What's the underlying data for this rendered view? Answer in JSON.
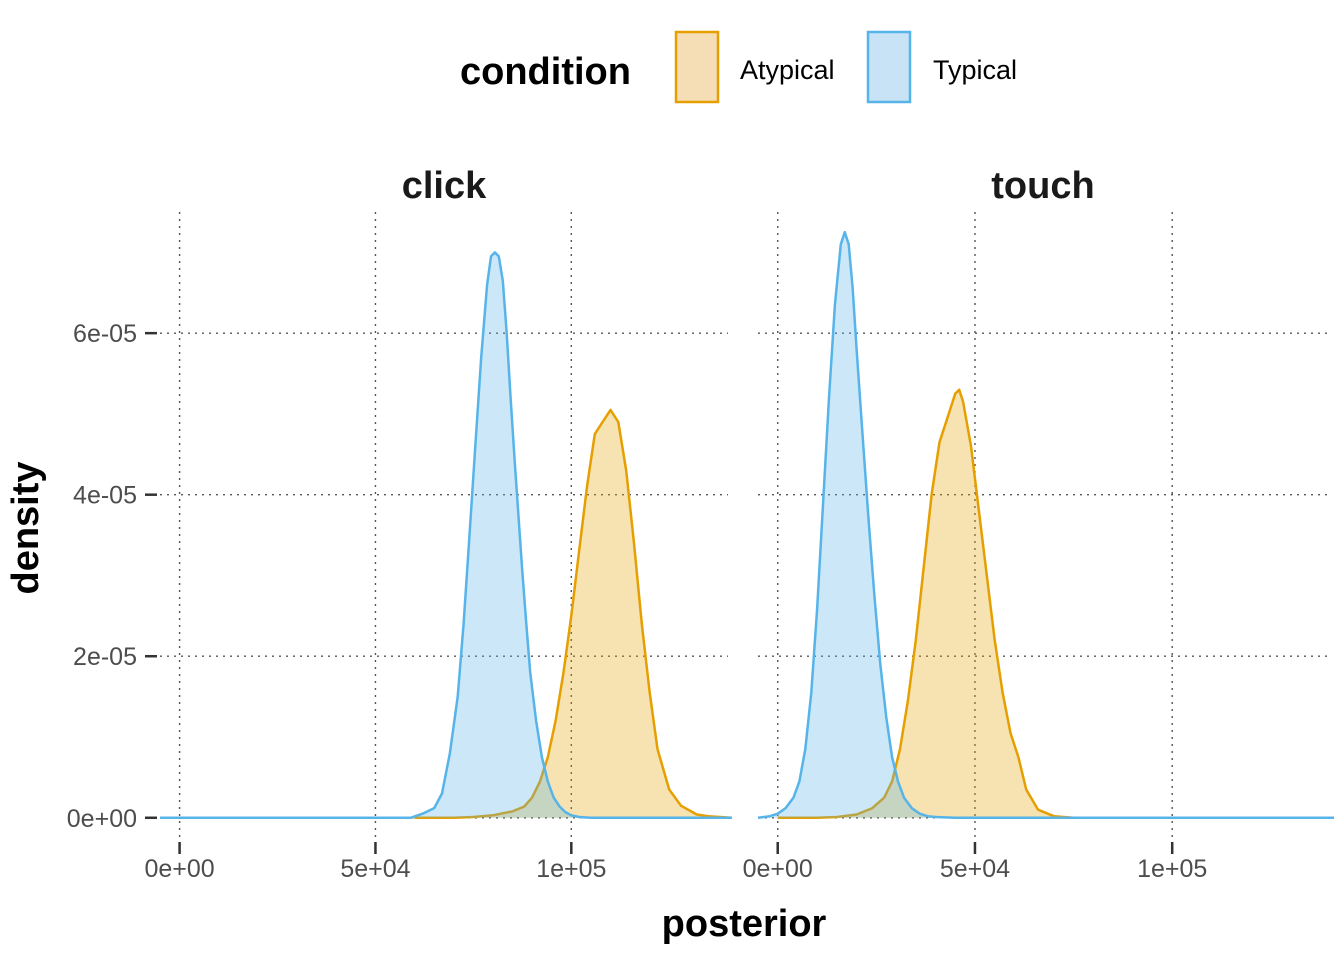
{
  "chart_data": {
    "type": "area",
    "legend": {
      "title": "condition",
      "position": "top",
      "entries": [
        {
          "name": "Atypical",
          "fill": "#f5deb5",
          "stroke": "#e69f00"
        },
        {
          "name": "Typical",
          "fill": "#c8e3f5",
          "stroke": "#56b4e9"
        }
      ]
    },
    "xlabel": "posterior",
    "ylabel": "density",
    "xlim": [
      -5000,
      140000
    ],
    "ylim": [
      -3e-06,
      7.5e-05
    ],
    "x_ticks": [
      0,
      50000,
      100000
    ],
    "x_tick_labels": [
      "0e+00",
      "5e+04",
      "1e+05"
    ],
    "y_ticks": [
      0,
      2e-05,
      4e-05,
      6e-05
    ],
    "y_tick_labels": [
      "0e+00",
      "2e-05",
      "4e-05",
      "6e-05"
    ],
    "grid": "dotted",
    "panels": [
      {
        "name": "click",
        "series": [
          {
            "name": "Atypical",
            "x": [
              60000,
              65000,
              70000,
              75000,
              80000,
              85000,
              88000,
              90000,
              92000,
              94000,
              96000,
              98000,
              100000,
              102000,
              104000,
              106000,
              108000,
              110000,
              112000,
              114000,
              116000,
              118000,
              120000,
              122000,
              125000,
              128000,
              132000,
              135000,
              141000
            ],
            "y": [
              0,
              0,
              0,
              1e-07,
              3e-07,
              8e-07,
              1.4e-06,
              2.5e-06,
              4.5e-06,
              7.5e-06,
              1.2e-05,
              1.8e-05,
              2.5e-05,
              3.3e-05,
              4.1e-05,
              4.75e-05,
              4.9e-05,
              5.05e-05,
              4.9e-05,
              4.3e-05,
              3.4e-05,
              2.4e-05,
              1.55e-05,
              8.5e-06,
              3.5e-06,
              1.5e-06,
              4e-07,
              2e-07,
              0
            ]
          },
          {
            "name": "Typical",
            "x": [
              -5000,
              50000,
              59000,
              62000,
              65000,
              67000,
              69000,
              71000,
              72500,
              74000,
              75500,
              77000,
              78500,
              79500,
              80500,
              81500,
              82500,
              83500,
              84500,
              85500,
              86500,
              87500,
              88500,
              89500,
              91000,
              92500,
              94000,
              95500,
              97000,
              98500,
              100000,
              102000,
              105000,
              110000,
              141000
            ],
            "y": [
              0,
              0,
              0,
              5e-07,
              1.2e-06,
              3e-06,
              8e-06,
              1.5e-05,
              2.4e-05,
              3.5e-05,
              4.6e-05,
              5.7e-05,
              6.6e-05,
              6.95e-05,
              7e-05,
              6.95e-05,
              6.65e-05,
              6e-05,
              5.2e-05,
              4.45e-05,
              3.75e-05,
              3.05e-05,
              2.4e-05,
              1.8e-05,
              1.2e-05,
              7.5e-06,
              4.5e-06,
              2.5e-06,
              1.4e-06,
              7e-07,
              3e-07,
              1e-07,
              0,
              0,
              0
            ]
          }
        ]
      },
      {
        "name": "touch",
        "series": [
          {
            "name": "Atypical",
            "x": [
              0,
              10000,
              15000,
              20000,
              24000,
              27000,
              29000,
              31000,
              33000,
              35000,
              37000,
              39000,
              41000,
              43000,
              45000,
              46000,
              47000,
              49000,
              51000,
              53000,
              55000,
              57000,
              59000,
              61000,
              63000,
              66000,
              70000,
              75000,
              80000,
              141000
            ],
            "y": [
              0,
              0,
              1e-07,
              4e-07,
              1.2e-06,
              2.5e-06,
              4.5e-06,
              8.5e-06,
              1.45e-05,
              2.2e-05,
              3.1e-05,
              4e-05,
              4.65e-05,
              4.95e-05,
              5.25e-05,
              5.3e-05,
              5.15e-05,
              4.6e-05,
              3.8e-05,
              3e-05,
              2.2e-05,
              1.55e-05,
              1.05e-05,
              7.5e-06,
              3.5e-06,
              1e-06,
              2e-07,
              0,
              0,
              0
            ]
          },
          {
            "name": "Typical",
            "x": [
              -5000,
              -2000,
              0,
              2000,
              4000,
              5500,
              7000,
              8500,
              10000,
              11500,
              13000,
              14500,
              16000,
              17000,
              18000,
              19000,
              20000,
              21500,
              23000,
              24500,
              26000,
              27500,
              29000,
              30500,
              32000,
              34000,
              36000,
              38000,
              40000,
              45000,
              60000,
              141000
            ],
            "y": [
              0,
              2e-07,
              5e-07,
              1.2e-06,
              2.5e-06,
              4.5e-06,
              8.5e-06,
              1.55e-05,
              2.6e-05,
              3.9e-05,
              5.2e-05,
              6.35e-05,
              7.1e-05,
              7.25e-05,
              7.1e-05,
              6.55e-05,
              5.8e-05,
              4.75e-05,
              3.7e-05,
              2.75e-05,
              1.9e-05,
              1.25e-05,
              7.5e-06,
              4.5e-06,
              2.5e-06,
              1.2e-06,
              5e-07,
              2e-07,
              1e-07,
              0,
              0,
              0
            ]
          }
        ]
      }
    ]
  }
}
